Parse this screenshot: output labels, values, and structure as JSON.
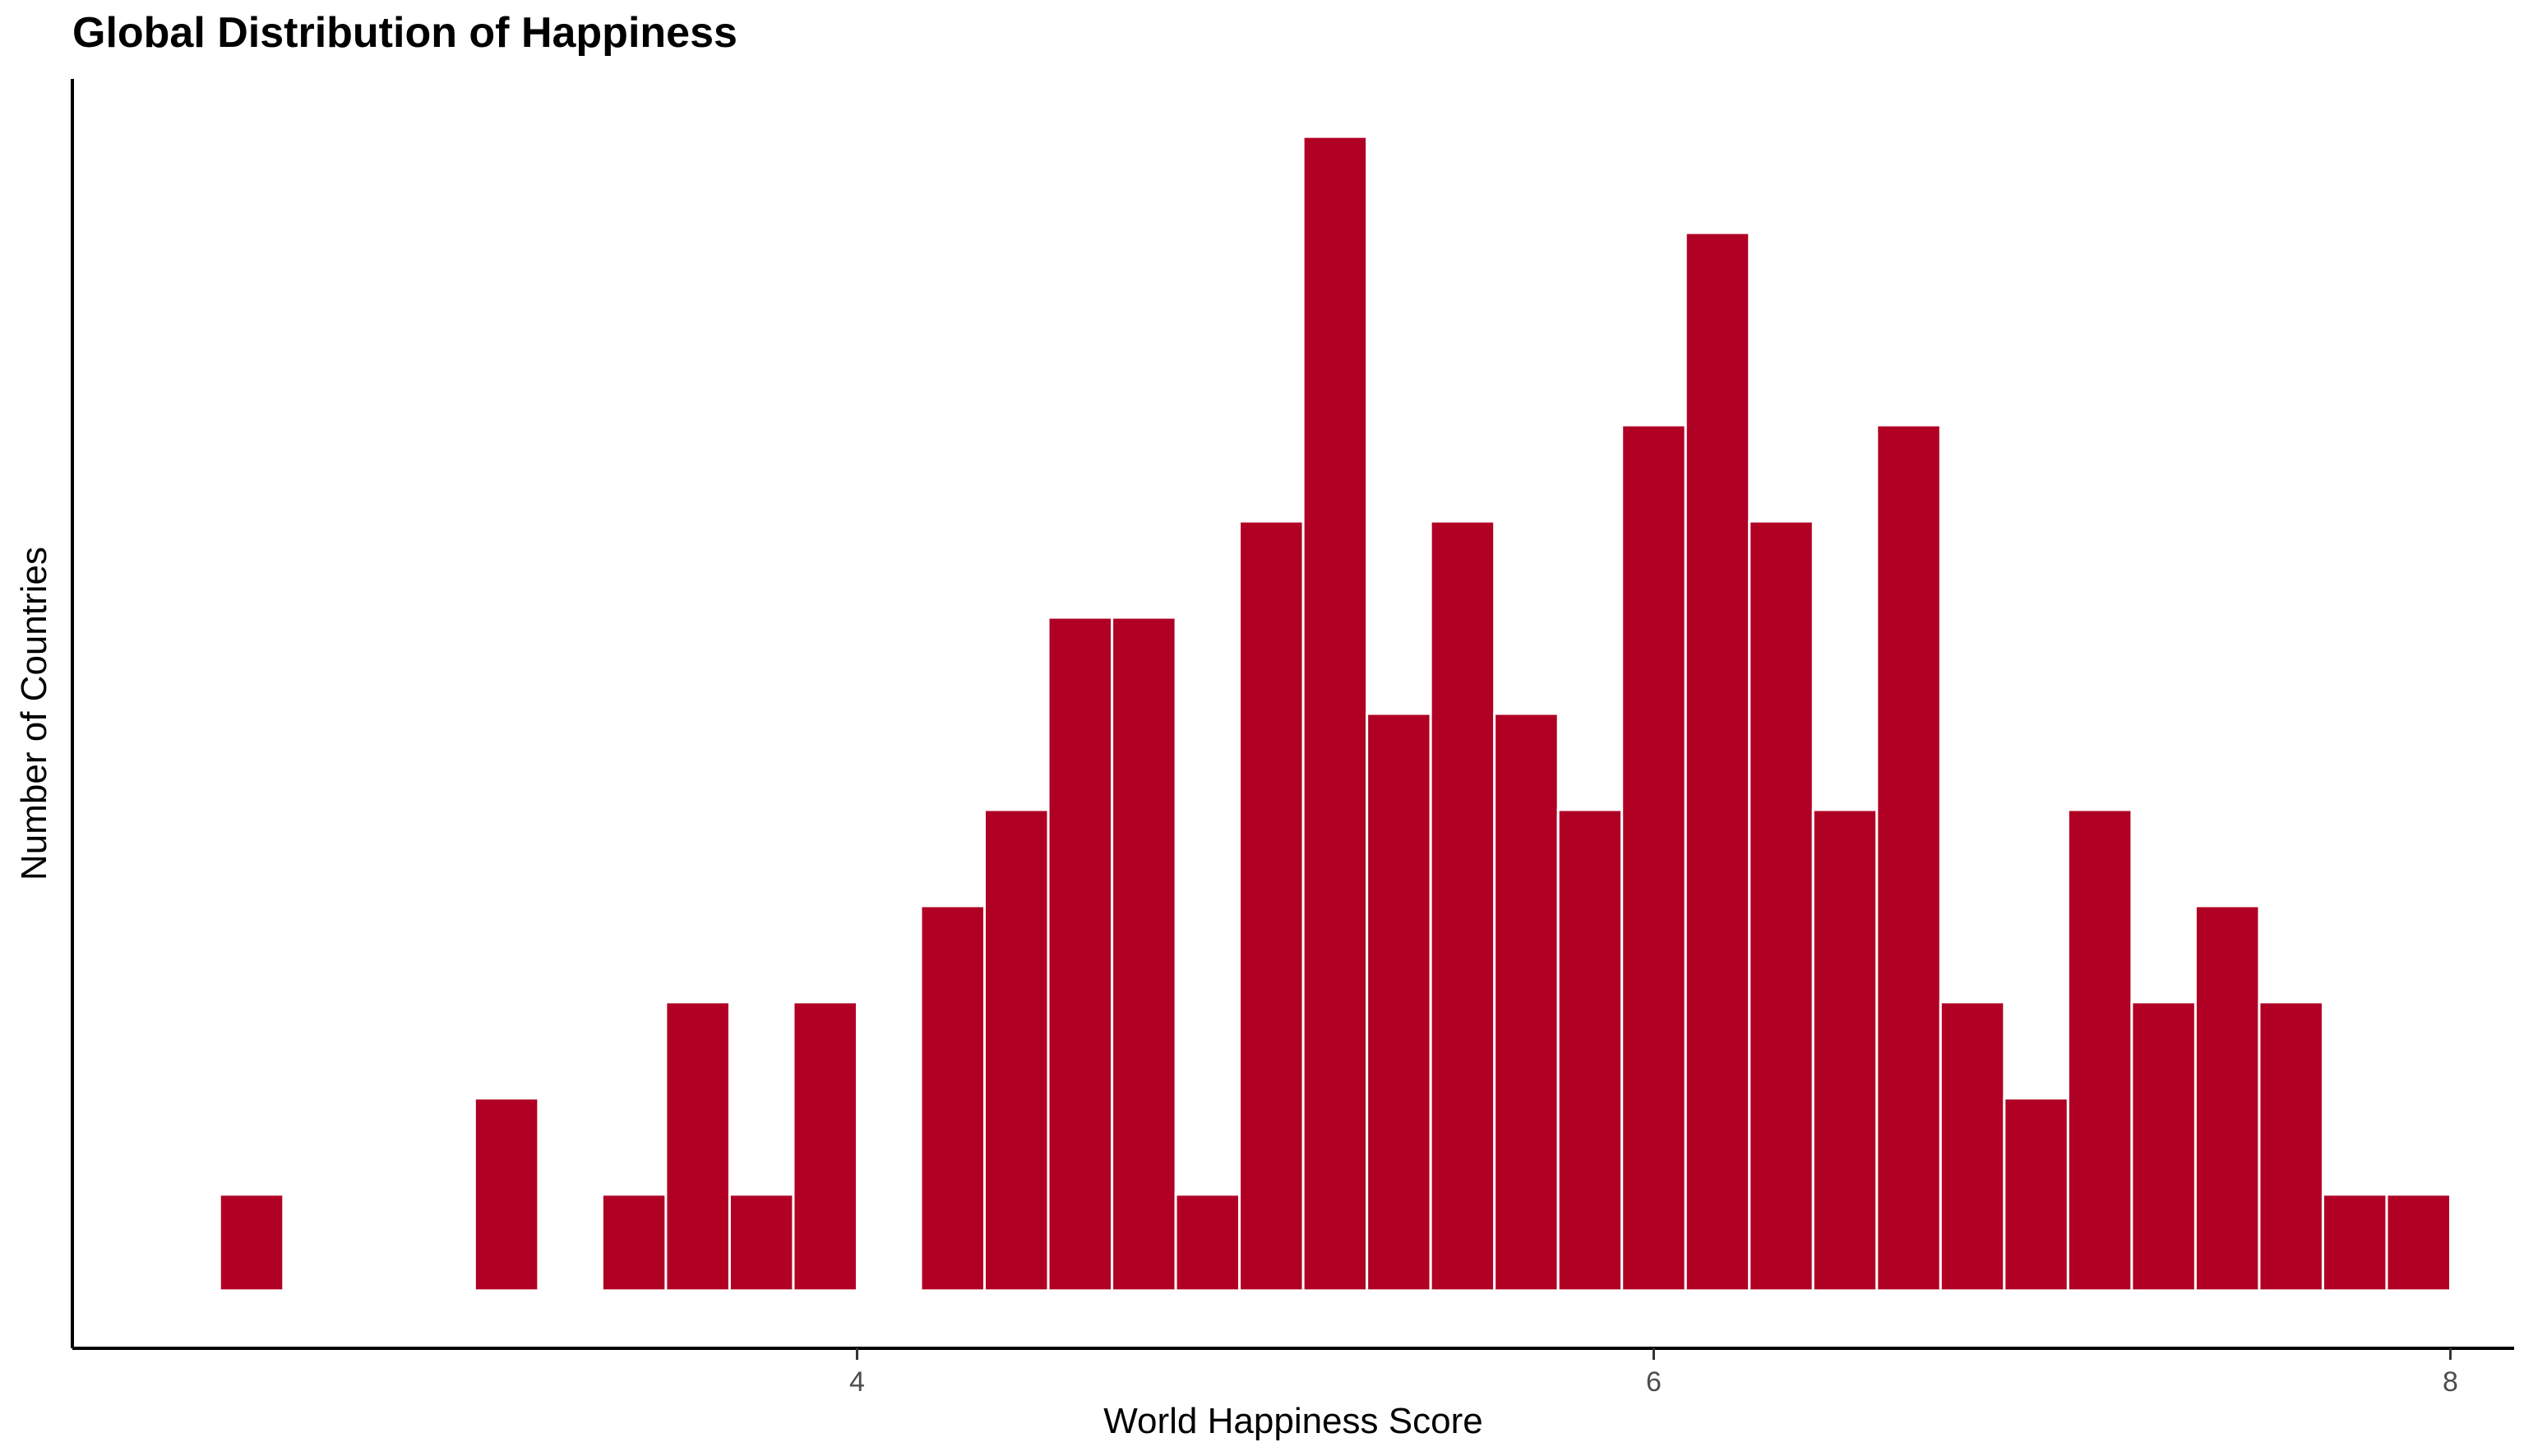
{
  "chart_data": {
    "type": "bar",
    "title": "Global Distribution of Happiness",
    "xlabel": "World Happiness Score",
    "ylabel": "Number of Countries",
    "bin_width": 0.16,
    "bins": [
      {
        "x": 2.48,
        "count": 1
      },
      {
        "x": 3.12,
        "count": 2
      },
      {
        "x": 3.44,
        "count": 1
      },
      {
        "x": 3.6,
        "count": 3
      },
      {
        "x": 3.76,
        "count": 1
      },
      {
        "x": 3.92,
        "count": 3
      },
      {
        "x": 4.24,
        "count": 4
      },
      {
        "x": 4.4,
        "count": 5
      },
      {
        "x": 4.56,
        "count": 7
      },
      {
        "x": 4.72,
        "count": 7
      },
      {
        "x": 4.88,
        "count": 1
      },
      {
        "x": 5.04,
        "count": 8
      },
      {
        "x": 5.2,
        "count": 12
      },
      {
        "x": 5.36,
        "count": 6
      },
      {
        "x": 5.52,
        "count": 8
      },
      {
        "x": 5.68,
        "count": 6
      },
      {
        "x": 5.84,
        "count": 5
      },
      {
        "x": 6.0,
        "count": 9
      },
      {
        "x": 6.16,
        "count": 11
      },
      {
        "x": 6.32,
        "count": 8
      },
      {
        "x": 6.48,
        "count": 5
      },
      {
        "x": 6.64,
        "count": 9
      },
      {
        "x": 6.8,
        "count": 3
      },
      {
        "x": 6.96,
        "count": 2
      },
      {
        "x": 7.12,
        "count": 5
      },
      {
        "x": 7.28,
        "count": 3
      },
      {
        "x": 7.44,
        "count": 4
      },
      {
        "x": 7.6,
        "count": 3
      },
      {
        "x": 7.76,
        "count": 1
      },
      {
        "x": 7.92,
        "count": 1
      }
    ],
    "xlim": [
      2.03,
      8.16
    ],
    "ylim": [
      -0.6,
      12.6
    ],
    "x_ticks": [
      {
        "value": 4,
        "label": "4"
      },
      {
        "value": 6,
        "label": "6"
      },
      {
        "value": 8,
        "label": "8"
      }
    ],
    "grid": false,
    "bar_color": "#b00024",
    "bar_outline_color": "#ffffff"
  }
}
